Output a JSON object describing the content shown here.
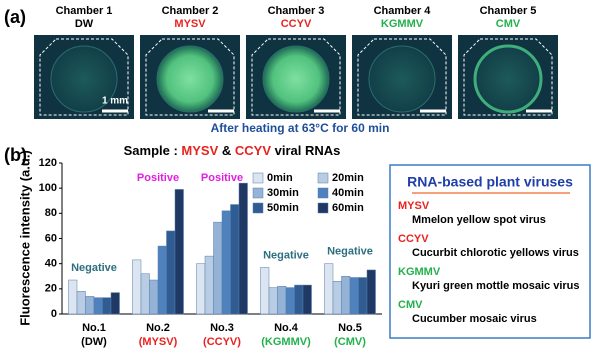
{
  "panel_a": {
    "label": "(a)",
    "chambers": [
      {
        "name": "Chamber 1",
        "sample": "DW",
        "color": "#000000"
      },
      {
        "name": "Chamber 2",
        "sample": "MYSV",
        "color": "#e8231f"
      },
      {
        "name": "Chamber 3",
        "sample": "CCYV",
        "color": "#e8231f"
      },
      {
        "name": "Chamber 4",
        "sample": "KGMMV",
        "color": "#22b14c"
      },
      {
        "name": "Chamber 5",
        "sample": "CMV",
        "color": "#22b14c"
      }
    ],
    "scale_bar": "1 mm",
    "caption": "After heating at 63°C for 60 min"
  },
  "chart_data": {
    "type": "bar",
    "panel_label": "(b)",
    "title_parts": [
      {
        "text": "Sample : ",
        "color": "#000000"
      },
      {
        "text": "MYSV",
        "color": "#e8231f"
      },
      {
        "text": " & ",
        "color": "#000000"
      },
      {
        "text": "CCYV",
        "color": "#e8231f"
      },
      {
        "text": " viral RNAs",
        "color": "#000000"
      }
    ],
    "y_label": "Fluorescence intensity (a.u.)",
    "categories": [
      "No.1",
      "No.2",
      "No.3",
      "No.4",
      "No.5"
    ],
    "category_samples": [
      {
        "text": "(DW)",
        "color": "#000000"
      },
      {
        "text": "(MYSV)",
        "color": "#e8231f"
      },
      {
        "text": "(CCYV)",
        "color": "#e8231f"
      },
      {
        "text": "(KGMMV)",
        "color": "#22b14c"
      },
      {
        "text": "(CMV)",
        "color": "#22b14c"
      }
    ],
    "annotations": [
      {
        "text": "Negative",
        "color": "#2e6f80"
      },
      {
        "text": "Positive",
        "color": "#e020e0"
      },
      {
        "text": "Positive",
        "color": "#e020e0"
      },
      {
        "text": "Negative",
        "color": "#2e6f80"
      },
      {
        "text": "Negative",
        "color": "#2e6f80"
      }
    ],
    "series": [
      {
        "name": "0min",
        "color": "#dbe5f1",
        "values": [
          27,
          43,
          40,
          37,
          40
        ]
      },
      {
        "name": "20min",
        "color": "#b8cce4",
        "values": [
          18,
          32,
          46,
          21,
          26
        ]
      },
      {
        "name": "30min",
        "color": "#95b3d7",
        "values": [
          14,
          27,
          73,
          22,
          30
        ]
      },
      {
        "name": "40min",
        "color": "#4f81bd",
        "values": [
          13,
          54,
          82,
          21,
          29
        ]
      },
      {
        "name": "50min",
        "color": "#2e5c93",
        "values": [
          13,
          66,
          87,
          23,
          29
        ]
      },
      {
        "name": "60min",
        "color": "#1f3864",
        "values": [
          17,
          99,
          104,
          23,
          35
        ]
      }
    ],
    "ylim": [
      0,
      120
    ],
    "yticks": [
      0,
      20,
      40,
      60,
      80,
      100,
      120
    ]
  },
  "virus_box": {
    "title": "RNA-based plant viruses",
    "entries": [
      {
        "abbr": "MYSV",
        "color": "#e8231f",
        "full": "Mmelon yellow spot virus"
      },
      {
        "abbr": "CCYV",
        "color": "#e8231f",
        "full": "Cucurbit chlorotic yellows virus"
      },
      {
        "abbr": "KGMMV",
        "color": "#22b14c",
        "full": "Kyuri green mottle mosaic virus"
      },
      {
        "abbr": "CMV",
        "color": "#22b14c",
        "full": "Cucumber mosaic virus"
      }
    ]
  }
}
